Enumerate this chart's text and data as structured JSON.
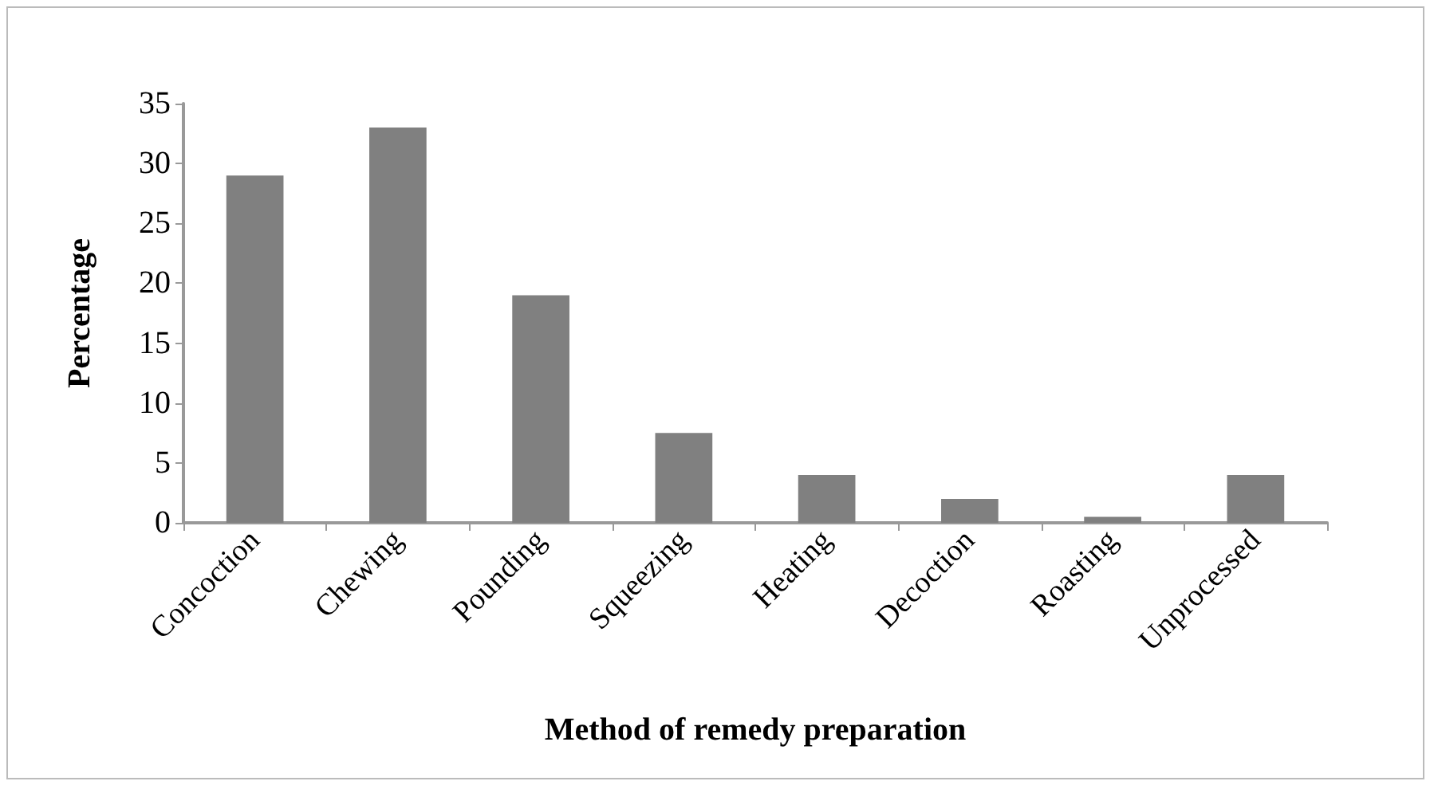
{
  "chart_data": {
    "type": "bar",
    "xlabel": "Method of remedy preparation",
    "ylabel": "Percentage",
    "categories": [
      "Concoction",
      "Chewing",
      "Pounding",
      "Squeezing",
      "Heating",
      "Decoction",
      "Roasting",
      "Unprocessed"
    ],
    "values": [
      29,
      33,
      19,
      7.5,
      4,
      2,
      0.5,
      4
    ],
    "color": "#808080",
    "ylim": [
      0,
      35
    ],
    "yticks": [
      0,
      5,
      10,
      15,
      20,
      25,
      30,
      35
    ],
    "grid": false
  }
}
